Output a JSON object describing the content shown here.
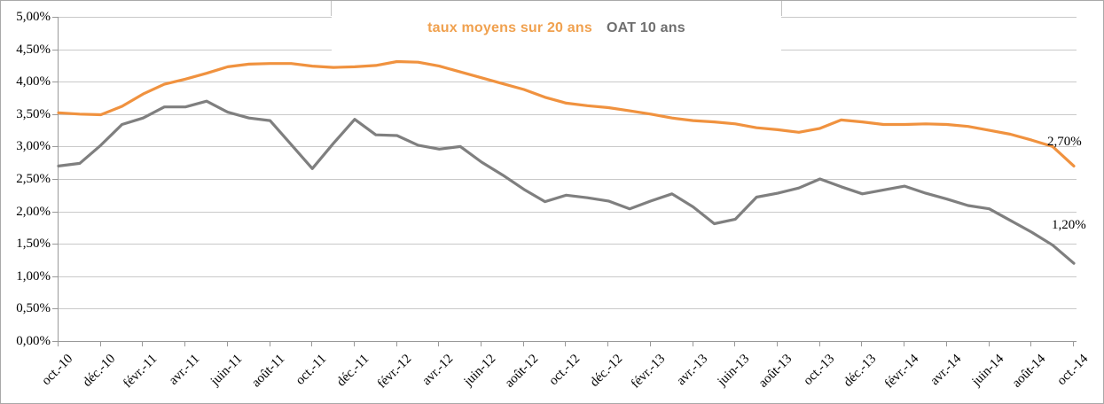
{
  "chart_data": {
    "type": "line",
    "title": "",
    "x_frequency": "monthly, oct. 2010 to oct. 2014 (49 points, one per month)",
    "x_tick_labels": [
      "oct.-10",
      "déc.-10",
      "févr.-11",
      "avr.-11",
      "juin-11",
      "août-11",
      "oct.-11",
      "déc.-11",
      "févr.-12",
      "avr.-12",
      "juin-12",
      "août-12",
      "oct.-12",
      "déc.-12",
      "févr.-13",
      "avr.-13",
      "juin-13",
      "août-13",
      "oct.-13",
      "déc.-13",
      "févr.-14",
      "avr.-14",
      "juin-14",
      "août-14",
      "oct.-14"
    ],
    "y_tick_labels": [
      "5,00%",
      "4,50%",
      "4,00%",
      "3,50%",
      "3,00%",
      "2,50%",
      "2,00%",
      "1,50%",
      "1,00%",
      "0,50%",
      "0,00%"
    ],
    "ylim": [
      0,
      5
    ],
    "y_tick_step": 0.5,
    "grid": true,
    "legend_position": "top-center",
    "series": [
      {
        "name": "taux moyens sur 20 ans",
        "color": "#F0923F",
        "legend_text_color": "#F0A14F",
        "values": [
          3.52,
          3.5,
          3.49,
          3.62,
          3.81,
          3.96,
          4.04,
          4.13,
          4.23,
          4.27,
          4.28,
          4.28,
          4.24,
          4.22,
          4.23,
          4.25,
          4.31,
          4.3,
          4.24,
          4.15,
          4.06,
          3.97,
          3.88,
          3.76,
          3.67,
          3.63,
          3.6,
          3.55,
          3.5,
          3.44,
          3.4,
          3.38,
          3.35,
          3.29,
          3.26,
          3.22,
          3.28,
          3.41,
          3.38,
          3.34,
          3.34,
          3.35,
          3.34,
          3.31,
          3.25,
          3.19,
          3.1,
          3.0,
          2.7
        ]
      },
      {
        "name": "OAT 10 ans",
        "color": "#7F7F7F",
        "legend_text_color": "#6F6F6F",
        "values": [
          2.7,
          2.74,
          3.02,
          3.34,
          3.44,
          3.61,
          3.61,
          3.7,
          3.53,
          3.44,
          3.4,
          3.03,
          2.66,
          3.05,
          3.42,
          3.18,
          3.17,
          3.02,
          2.96,
          3.0,
          2.76,
          2.56,
          2.34,
          2.15,
          2.25,
          2.21,
          2.16,
          2.04,
          2.16,
          2.27,
          2.07,
          1.81,
          1.88,
          2.22,
          2.28,
          2.36,
          2.5,
          2.38,
          2.27,
          2.33,
          2.39,
          2.28,
          2.19,
          2.09,
          2.04,
          1.86,
          1.68,
          1.48,
          1.2
        ]
      }
    ],
    "end_labels": [
      {
        "text": "2,70%",
        "series": "taux moyens sur 20 ans"
      },
      {
        "text": "1,20%",
        "series": "OAT 10 ans"
      }
    ]
  },
  "legend": {
    "item1": "taux moyens sur 20 ans",
    "item2": "OAT 10 ans"
  },
  "colors": {
    "orange_line": "#F0923F",
    "orange_legend_text": "#F0A14F",
    "gray_line": "#7F7F7F",
    "gray_legend_text": "#6F6F6F",
    "gridline": "#C9C9C9",
    "axis": "#999999"
  }
}
